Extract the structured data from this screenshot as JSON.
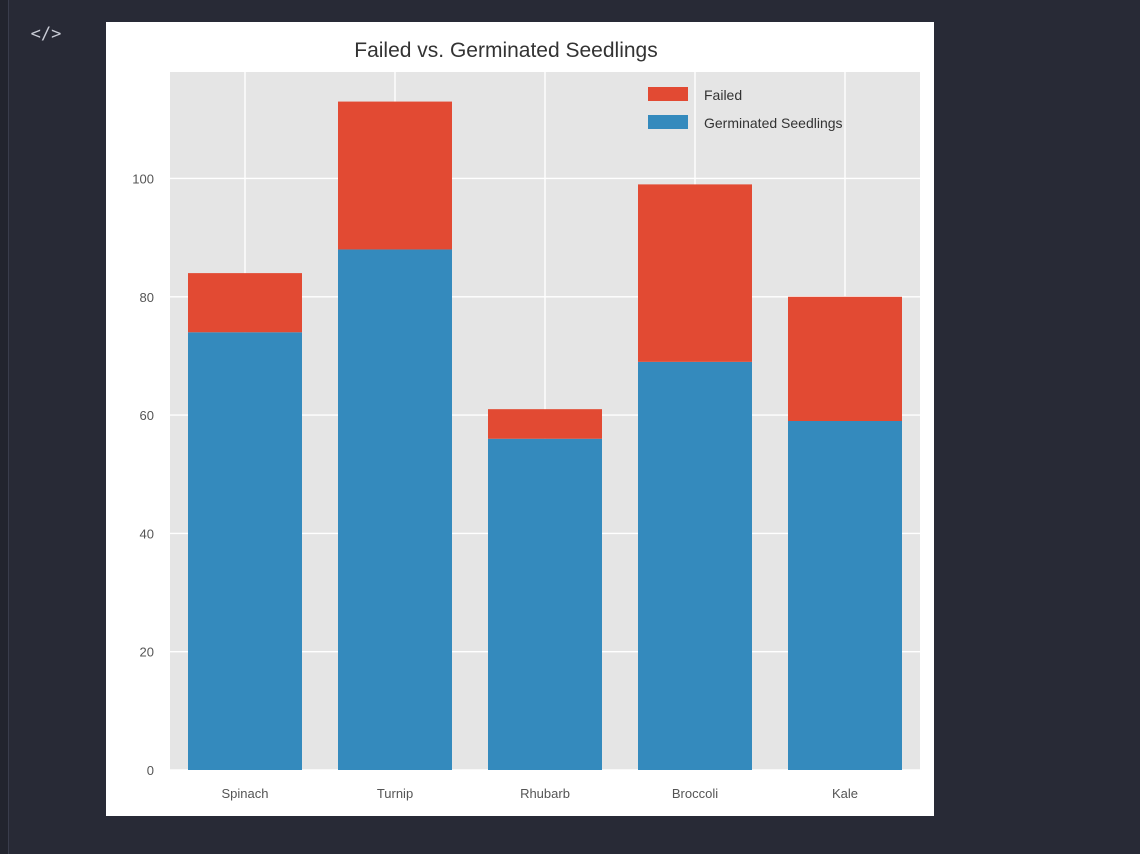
{
  "toolbar": {
    "code_toggle_icon": "code-icon",
    "code_toggle_glyph": "</>"
  },
  "colors": {
    "page_background": "#282a36",
    "plot_background": "#e5e5e5",
    "grid": "#ffffff",
    "failed": "#e24a33",
    "germinated": "#348abd"
  },
  "chart_data": {
    "type": "bar",
    "stacked": true,
    "title": "Failed vs. Germinated Seedlings",
    "xlabel": "",
    "ylabel": "",
    "categories": [
      "Spinach",
      "Turnip",
      "Rhubarb",
      "Broccoli",
      "Kale"
    ],
    "series": [
      {
        "name": "Germinated Seedlings",
        "color": "#348abd",
        "values": [
          74,
          88,
          56,
          69,
          59
        ]
      },
      {
        "name": "Failed",
        "color": "#e24a33",
        "values": [
          10,
          25,
          5,
          30,
          21
        ]
      }
    ],
    "ylim": [
      0,
      118
    ],
    "yticks": [
      0,
      20,
      40,
      60,
      80,
      100
    ],
    "grid": true,
    "legend": {
      "placement": "top-right",
      "entries": [
        "Failed",
        "Germinated Seedlings"
      ]
    }
  }
}
